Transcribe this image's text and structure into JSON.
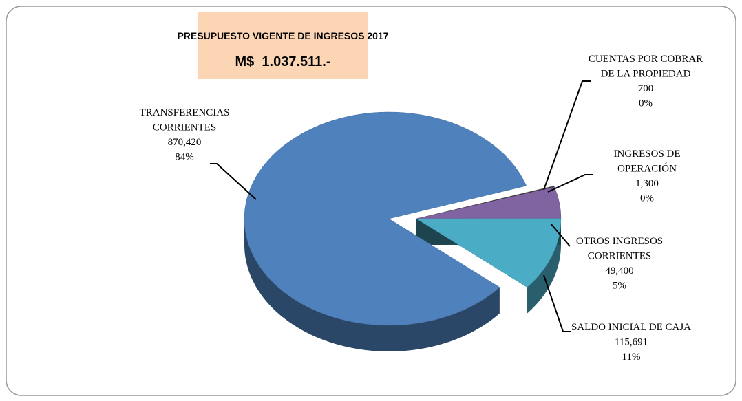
{
  "chart_data": {
    "type": "pie",
    "title": "PRESUPUESTO VIGENTE DE INGRESOS 2017",
    "subtitle": "M$  1.037.511.-",
    "categories": [
      [
        "TRANSFERENCIAS",
        "CORRIENTES"
      ],
      [
        "CUENTAS POR COBRAR",
        "DE LA PROPIEDAD"
      ],
      [
        "INGRESOS DE",
        "OPERACIÓN"
      ],
      [
        "OTROS INGRESOS",
        "CORRIENTES"
      ],
      [
        "SALDO INICIAL DE CAJA"
      ]
    ],
    "values": [
      870420,
      700,
      1300,
      49400,
      115691
    ],
    "value_labels": [
      "870,420",
      "700",
      "1,300",
      "49,400",
      "115,691"
    ],
    "percents": [
      84,
      0,
      0,
      5,
      11
    ],
    "percent_labels": [
      "84%",
      "0%",
      "0%",
      "5%",
      "11%"
    ],
    "colors": [
      "#4f81bd",
      "#9bbb59",
      "#3f2d55",
      "#8064a2",
      "#4bacc6"
    ]
  }
}
